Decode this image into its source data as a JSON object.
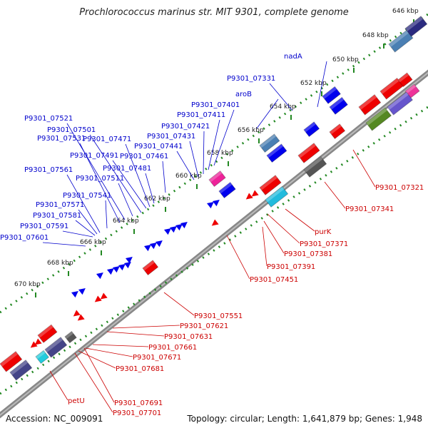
{
  "title": "Prochlorococcus marinus str. MIT 9301, complete genome",
  "footer": {
    "accession": "Accession: NC_009091",
    "info": "Topology: circular; Length: 1,641,879 bp; Genes: 1,948"
  },
  "colors": {
    "backbone": "#888888",
    "forward_gene": "#0000ee",
    "reverse_gene": "#ee0000",
    "forward_label": "#0000cc",
    "reverse_label": "#cc0000",
    "tick": "#228822",
    "kbp_label": "#222222"
  },
  "ruler_upper": [
    "646 kbp",
    "648 kbp",
    "650 kbp",
    "652 kbp",
    "654 kbp",
    "656 kbp",
    "658 kbp",
    "660 kbp",
    "662 kbp",
    "664 kbp",
    "666 kbp",
    "668 kbp",
    "670 kbp"
  ],
  "forward_labels": [
    "nadA",
    "P9301_07331",
    "aroB",
    "P9301_07401",
    "P9301_07411",
    "P9301_07421",
    "P9301_07431",
    "P9301_07441",
    "P9301_07461",
    "P9301_07471",
    "P9301_07481",
    "P9301_07491",
    "P9301_07501",
    "P9301_07511",
    "P9301_07521",
    "P9301_07531",
    "P9301_07541",
    "P9301_07561",
    "P9301_07571",
    "P9301_07581",
    "P9301_07591",
    "P9301_07601"
  ],
  "reverse_labels": [
    "P9301_07321",
    "P9301_07341",
    "purK",
    "P9301_07371",
    "P9301_07381",
    "P9301_07391",
    "P9301_07451",
    "P9301_07551",
    "P9301_07621",
    "P9301_07631",
    "P9301_07661",
    "P9301_07671",
    "P9301_07681",
    "petU",
    "P9301_07691",
    "P9301_07701"
  ]
}
